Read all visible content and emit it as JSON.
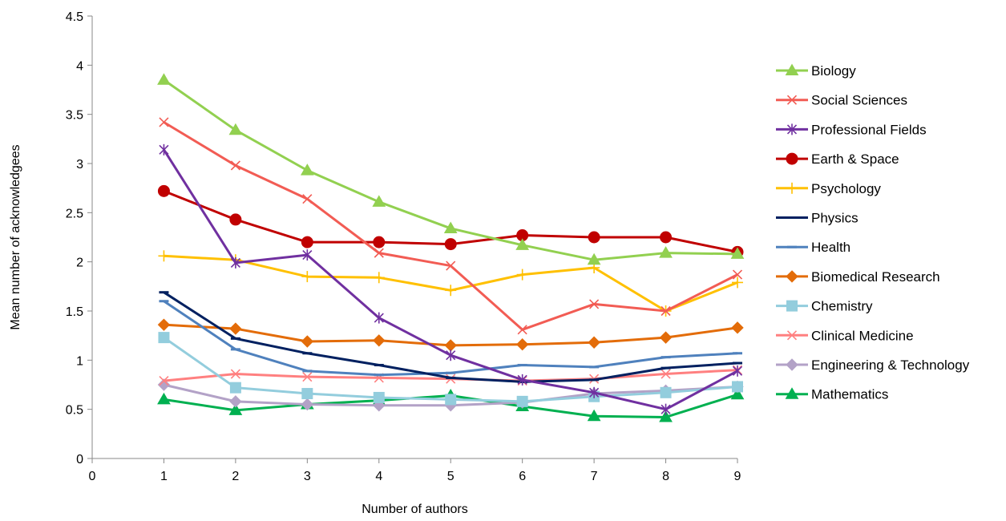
{
  "chart_data": {
    "type": "line",
    "title": "",
    "xlabel": "Number of authors",
    "ylabel": "Mean number of acknowledgees",
    "xlim": [
      0,
      9
    ],
    "ylim": [
      0,
      4.5
    ],
    "x_ticks": [
      "0",
      "1",
      "2",
      "3",
      "4",
      "5",
      "6",
      "7",
      "8",
      "9"
    ],
    "y_ticks": [
      "0",
      "0.5",
      "1",
      "1.5",
      "2",
      "2.5",
      "3",
      "3.5",
      "4",
      "4.5"
    ],
    "grid": false,
    "legend_position": "right",
    "x": [
      1,
      2,
      3,
      4,
      5,
      6,
      7,
      8,
      9
    ],
    "series": [
      {
        "name": "Biology",
        "color": "#92D050",
        "marker": "triangle",
        "values": [
          3.85,
          3.34,
          2.93,
          2.61,
          2.34,
          2.17,
          2.02,
          2.09,
          2.08
        ]
      },
      {
        "name": "Social Sciences",
        "color": "#F25C54",
        "marker": "x",
        "values": [
          3.42,
          2.98,
          2.64,
          2.09,
          1.96,
          1.31,
          1.57,
          1.5,
          1.87
        ]
      },
      {
        "name": "Professional Fields",
        "color": "#7030A0",
        "marker": "star",
        "values": [
          3.14,
          1.99,
          2.07,
          1.43,
          1.05,
          0.8,
          0.67,
          0.5,
          0.89
        ]
      },
      {
        "name": "Earth & Space",
        "color": "#C00000",
        "marker": "circle",
        "values": [
          2.72,
          2.43,
          2.2,
          2.2,
          2.18,
          2.27,
          2.25,
          2.25,
          2.1
        ]
      },
      {
        "name": "Psychology",
        "color": "#FFC000",
        "marker": "plus",
        "values": [
          2.06,
          2.02,
          1.85,
          1.84,
          1.71,
          1.87,
          1.94,
          1.5,
          1.79
        ]
      },
      {
        "name": "Physics",
        "color": "#002060",
        "marker": "dash",
        "values": [
          1.69,
          1.22,
          1.07,
          0.95,
          0.82,
          0.78,
          0.8,
          0.92,
          0.97
        ]
      },
      {
        "name": "Health",
        "color": "#4F81BD",
        "marker": "dash",
        "values": [
          1.6,
          1.11,
          0.89,
          0.85,
          0.87,
          0.95,
          0.93,
          1.03,
          1.07
        ]
      },
      {
        "name": "Biomedical Research",
        "color": "#E36C09",
        "marker": "diamond",
        "values": [
          1.36,
          1.32,
          1.19,
          1.2,
          1.15,
          1.16,
          1.18,
          1.23,
          1.33
        ]
      },
      {
        "name": "Chemistry",
        "color": "#93CDDD",
        "marker": "square",
        "values": [
          1.23,
          0.72,
          0.66,
          0.62,
          0.6,
          0.58,
          0.63,
          0.67,
          0.73
        ]
      },
      {
        "name": "Clinical Medicine",
        "color": "#FF8080",
        "marker": "x",
        "values": [
          0.79,
          0.86,
          0.83,
          0.82,
          0.81,
          0.79,
          0.81,
          0.86,
          0.9
        ]
      },
      {
        "name": "Engineering & Technology",
        "color": "#B3A2C7",
        "marker": "diamond",
        "values": [
          0.75,
          0.58,
          0.55,
          0.54,
          0.54,
          0.57,
          0.66,
          0.69,
          0.73
        ]
      },
      {
        "name": "Mathematics",
        "color": "#00B050",
        "marker": "triangle",
        "values": [
          0.6,
          0.49,
          0.55,
          0.59,
          0.64,
          0.53,
          0.43,
          0.42,
          0.65
        ]
      }
    ]
  }
}
